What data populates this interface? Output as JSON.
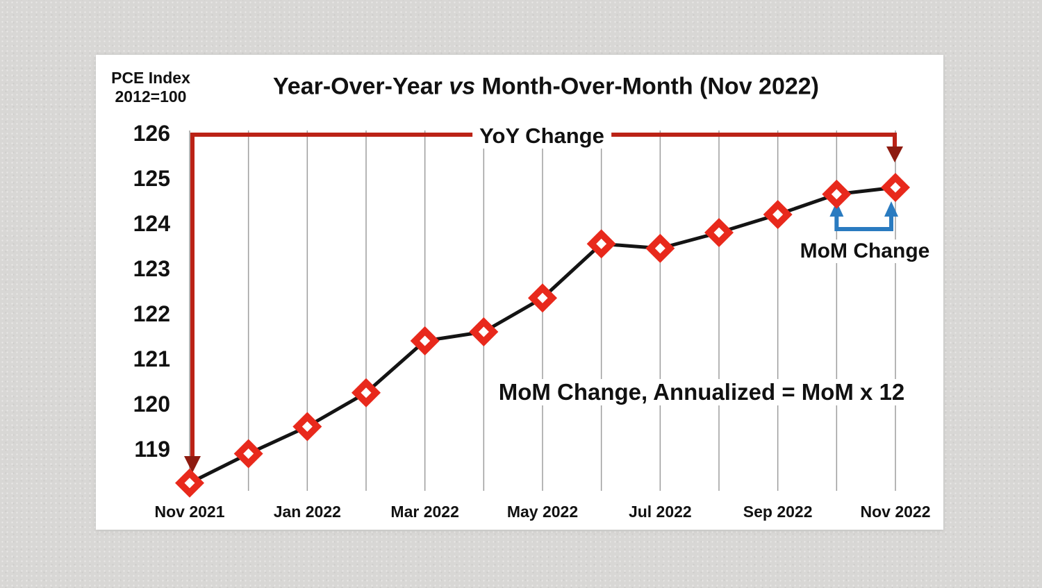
{
  "colors": {
    "background": "#d8d7d5",
    "card": "#ffffff",
    "data_line": "#141414",
    "marker_red": "#e8291c",
    "marker_hole": "#ffffff",
    "bracket_red": "#bb2216",
    "arrow_dark_red": "#8e1b10",
    "mom_blue": "#2a7bc0",
    "gridline": "#9d9d9d",
    "text": "#111111"
  },
  "header": {
    "title_part1": "Year-Over-Year ",
    "title_vs": "vs",
    "title_part2": " Month-Over-Month (Nov 2022)",
    "y_unit_line1": "PCE Index",
    "y_unit_line2": "2012=100"
  },
  "chart_data": {
    "type": "line",
    "title": "Year-Over-Year vs Month-Over-Month (Nov 2022)",
    "ylabel": "PCE Index, 2012=100",
    "x": [
      "Nov 2021",
      "Dec 2021",
      "Jan 2022",
      "Feb 2022",
      "Mar 2022",
      "Apr 2022",
      "May 2022",
      "Jun 2022",
      "Jul 2022",
      "Aug 2022",
      "Sep 2022",
      "Oct 2022",
      "Nov 2022"
    ],
    "values": [
      118.25,
      118.9,
      119.5,
      120.25,
      121.4,
      121.6,
      122.35,
      123.55,
      123.45,
      123.8,
      124.2,
      124.65,
      124.8
    ],
    "x_tick_labels": [
      "Nov 2021",
      "Jan 2022",
      "Mar 2022",
      "May 2022",
      "Jul 2022",
      "Sep 2022",
      "Nov 2022"
    ],
    "y_ticks": [
      126,
      125,
      124,
      123,
      122,
      121,
      120,
      119
    ],
    "ylim": [
      118.0,
      126.3
    ],
    "grid": "vertical monthly gridlines",
    "legend": "none",
    "marker": "red diamond with white center",
    "yoy_annotation": {
      "label": "YoY Change",
      "from_x": "Nov 2021",
      "to_x": "Nov 2022"
    },
    "mom_annotation": {
      "label": "MoM Change",
      "from_x": "Oct 2022",
      "to_x": "Nov 2022"
    },
    "formula_annotation": {
      "label": "MoM Change, Annualized = MoM x 12"
    }
  }
}
